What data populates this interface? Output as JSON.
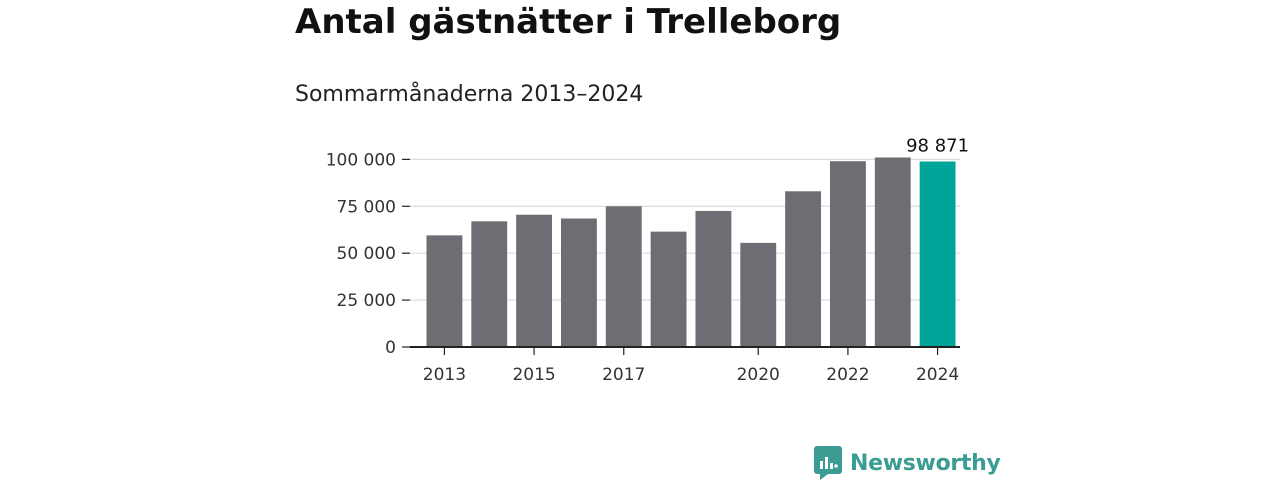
{
  "title": "Antal gästnätter i Trelleborg",
  "subtitle": "Sommarmånaderna 2013–2024",
  "brand": {
    "name": "Newsworthy",
    "color": "#3a9c93",
    "icon": "newsworthy-logo-icon"
  },
  "colors": {
    "bar": "#6e6d73",
    "highlight": "#00a59a",
    "grid": "#dddddd",
    "axis": "#222222"
  },
  "chart_data": {
    "type": "bar",
    "title": "Antal gästnätter i Trelleborg",
    "subtitle": "Sommarmånaderna 2013–2024",
    "xlabel": "",
    "ylabel": "",
    "categories": [
      "2013",
      "2014",
      "2015",
      "2016",
      "2017",
      "2018",
      "2019",
      "2020",
      "2021",
      "2022",
      "2023",
      "2024"
    ],
    "values": [
      59500,
      67000,
      70500,
      68500,
      75000,
      61500,
      72500,
      55500,
      83000,
      99000,
      101000,
      98871
    ],
    "ylim": [
      0,
      105000
    ],
    "yticks": [
      0,
      25000,
      50000,
      75000,
      100000
    ],
    "ytick_labels": [
      "0",
      "25 000",
      "50 000",
      "75 000",
      "100 000"
    ],
    "xtick_labels": [
      "2013",
      "2015",
      "2017",
      "2020",
      "2022",
      "2024"
    ],
    "highlight_index": 11,
    "data_labels": [
      {
        "index": 11,
        "text": "98 871"
      }
    ],
    "grid": true,
    "legend": "none"
  }
}
